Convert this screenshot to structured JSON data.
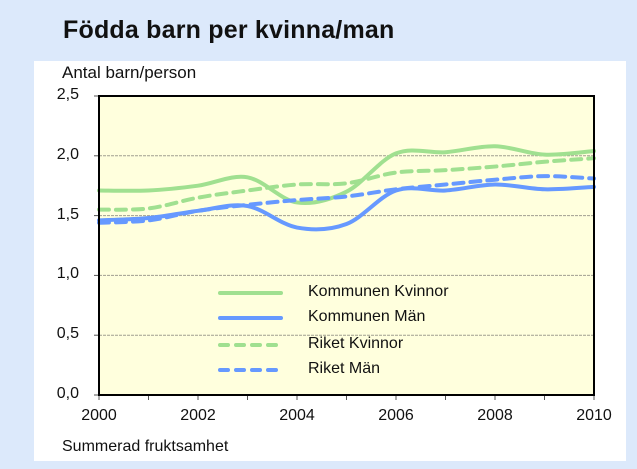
{
  "chart_data": {
    "type": "line",
    "title": "Födda barn per kvinna/man",
    "ylabel": "Antal barn/person",
    "xlabel": "Summerad fruktsamhet",
    "ylim": [
      0,
      2.5
    ],
    "xlim": [
      2000,
      2010
    ],
    "x": [
      2000,
      2001,
      2002,
      2003,
      2004,
      2005,
      2006,
      2007,
      2008,
      2009,
      2010
    ],
    "yticks": [
      "0,0",
      "0,5",
      "1,0",
      "1,5",
      "2,0",
      "2,5"
    ],
    "xticks": [
      "2000",
      "2002",
      "2004",
      "2006",
      "2008",
      "2010"
    ],
    "grid": true,
    "legend_position": "inside-bottom-center",
    "series": [
      {
        "name": "Kommunen Kvinnor",
        "style": "solid",
        "color": "#a0e090",
        "values": [
          1.71,
          1.71,
          1.75,
          1.82,
          1.61,
          1.7,
          2.02,
          2.03,
          2.08,
          2.01,
          2.04
        ]
      },
      {
        "name": "Kommunen Män",
        "style": "solid",
        "color": "#6699ff",
        "values": [
          1.46,
          1.48,
          1.54,
          1.58,
          1.4,
          1.43,
          1.71,
          1.71,
          1.76,
          1.72,
          1.74
        ]
      },
      {
        "name": "Riket Kvinnor",
        "style": "dashed",
        "color": "#a0e090",
        "values": [
          1.55,
          1.56,
          1.65,
          1.71,
          1.76,
          1.77,
          1.86,
          1.88,
          1.91,
          1.95,
          1.98
        ]
      },
      {
        "name": "Riket Män",
        "style": "dashed",
        "color": "#6699ff",
        "values": [
          1.44,
          1.46,
          1.54,
          1.59,
          1.63,
          1.66,
          1.72,
          1.76,
          1.8,
          1.83,
          1.81
        ]
      }
    ]
  },
  "colors": {
    "page_bg": "#dce9fb",
    "plot_bg": "#ffffdd",
    "green": "#a0e090",
    "blue": "#6699ff"
  }
}
